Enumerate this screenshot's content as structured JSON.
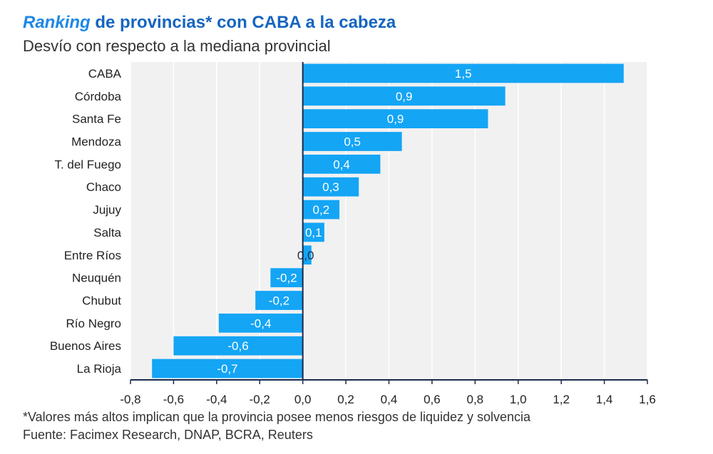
{
  "header": {
    "title_italic": "Ranking",
    "title_rest": " de provincias* con CABA a la cabeza",
    "subtitle": "Desvío con respecto a la mediana provincial"
  },
  "footer": {
    "note": "*Valores más altos implican que la provincia posee menos riesgos de liquidez y solvencia",
    "source": "Fuente: Facimex Research, DNAP, BCRA, Reuters"
  },
  "colors": {
    "bar": "#14a5f5",
    "plot_bg": "#f1f1f1",
    "grid": "#ffffff",
    "axis": "#1a2a4a"
  },
  "chart_data": {
    "type": "bar",
    "orientation": "horizontal",
    "title": "Ranking de provincias* con CABA a la cabeza",
    "subtitle": "Desvío con respecto a la mediana provincial",
    "categories": [
      "CABA",
      "Córdoba",
      "Santa Fe",
      "Mendoza",
      "T. del Fuego",
      "Chaco",
      "Jujuy",
      "Salta",
      "Entre Ríos",
      "Neuquén",
      "Chubut",
      "Río Negro",
      "Buenos Aires",
      "La Rioja"
    ],
    "values": [
      1.49,
      0.94,
      0.86,
      0.46,
      0.36,
      0.26,
      0.17,
      0.1,
      0.04,
      -0.15,
      -0.22,
      -0.39,
      -0.6,
      -0.7
    ],
    "value_labels": [
      "1,5",
      "0,9",
      "0,9",
      "0,5",
      "0,4",
      "0,3",
      "0,2",
      "0,1",
      "0,0",
      "-0,2",
      "-0,2",
      "-0,4",
      "-0,6",
      "-0,7"
    ],
    "xlim": [
      -0.8,
      1.6
    ],
    "xticks": [
      -0.8,
      -0.6,
      -0.4,
      -0.2,
      0.0,
      0.2,
      0.4,
      0.6,
      0.8,
      1.0,
      1.2,
      1.4,
      1.6
    ],
    "xtick_labels": [
      "-0,8",
      "-0,6",
      "-0,4",
      "-0,2",
      "0,0",
      "0,2",
      "0,4",
      "0,6",
      "0,8",
      "1,0",
      "1,2",
      "1,4",
      "1,6"
    ],
    "grid": true,
    "legend": "none"
  }
}
